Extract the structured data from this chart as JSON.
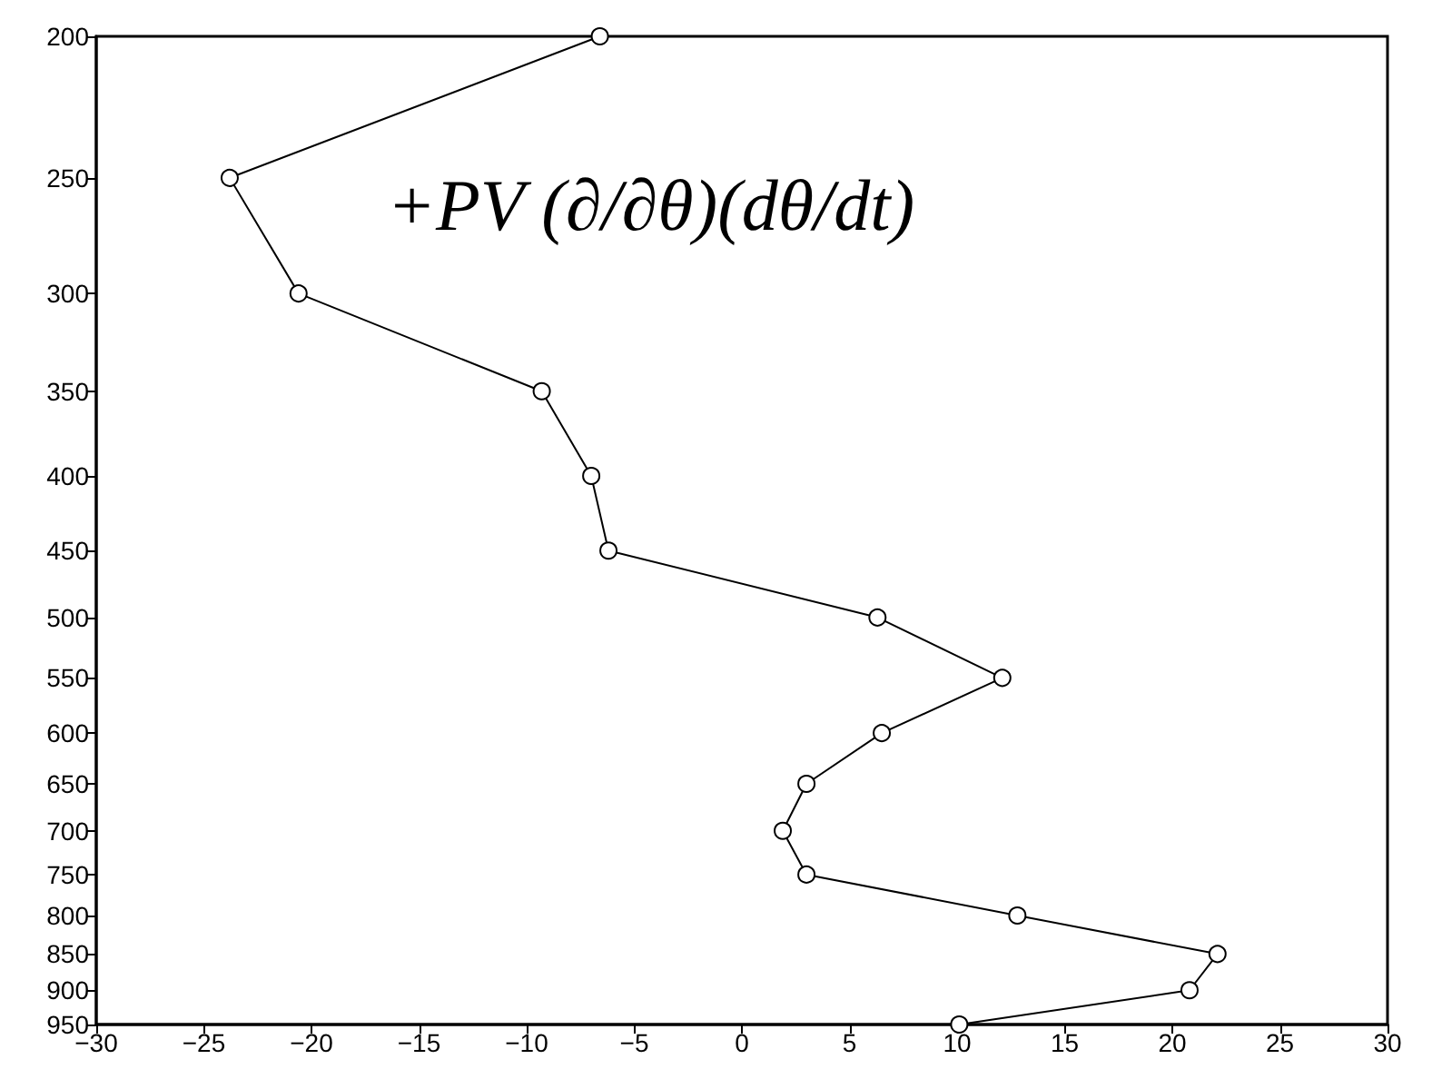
{
  "chart_data": {
    "type": "line",
    "annotations": [
      "+PV (∂/∂θ)(dθ/dt)"
    ],
    "x": [
      -6.6,
      -23.8,
      -20.6,
      -9.3,
      -7.0,
      -6.2,
      6.3,
      12.1,
      6.5,
      3.0,
      1.9,
      3.0,
      12.8,
      22.1,
      20.8,
      10.1
    ],
    "values": [
      200,
      250,
      300,
      350,
      400,
      450,
      500,
      550,
      600,
      650,
      700,
      750,
      800,
      850,
      900,
      950
    ],
    "color": "#000000",
    "marker": "circle",
    "line_style": "solid",
    "log": "y",
    "xlim": [
      -30,
      30
    ],
    "xticks": [
      -30,
      -25,
      -20,
      -15,
      -10,
      -5,
      0,
      5,
      10,
      15,
      20,
      25,
      30
    ],
    "ylim": [
      950,
      200
    ],
    "yticks": [
      200,
      250,
      300,
      350,
      400,
      450,
      500,
      550,
      600,
      650,
      700,
      750,
      800,
      850,
      900,
      950
    ]
  }
}
